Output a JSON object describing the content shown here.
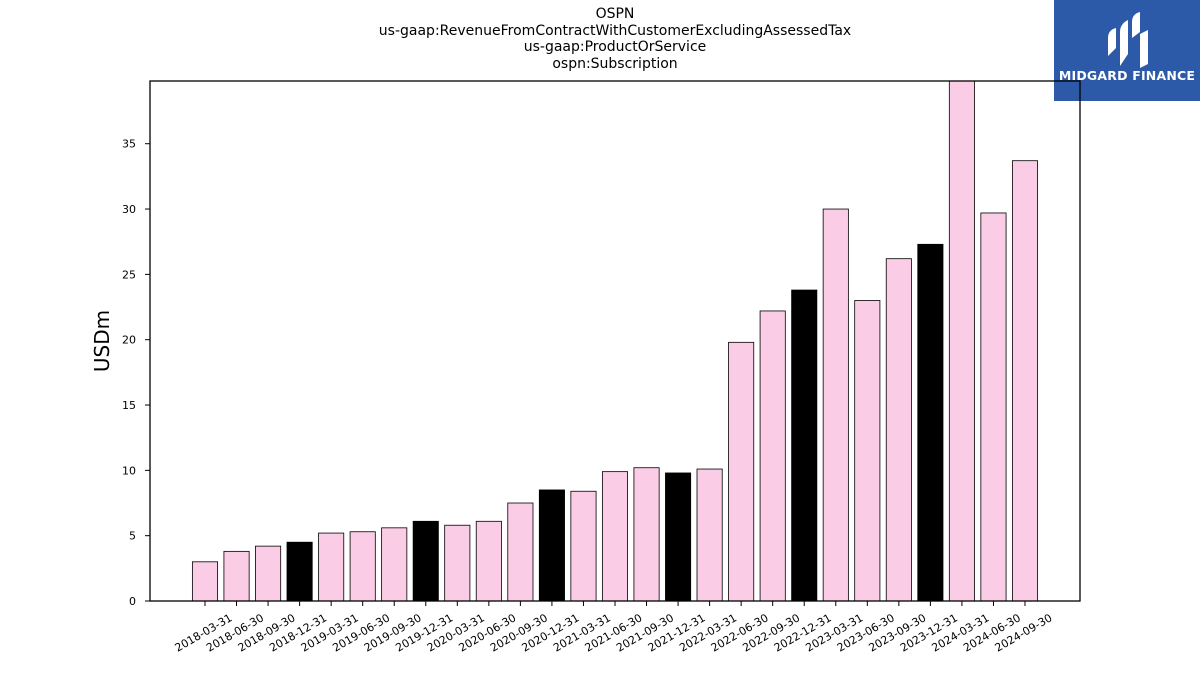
{
  "header": {
    "title_lines": [
      "OSPN",
      "us-gaap:RevenueFromContractWithCustomerExcludingAssessedTax",
      "us-gaap:ProductOrService",
      "ospn:Subscription"
    ]
  },
  "logo": {
    "text": "MIDGARD FINANCE",
    "icon": "midgard-logo-icon",
    "color": "#2d5aa8"
  },
  "colors": {
    "quarter_bar": "#fbcce5",
    "year_end_bar": "#000000",
    "bar_edge": "#000000"
  },
  "chart_data": {
    "type": "bar",
    "title": "OSPN\nus-gaap:RevenueFromContractWithCustomerExcludingAssessedTax\nus-gaap:ProductOrService\nospn:Subscription",
    "xlabel": "",
    "ylabel": "USDm",
    "ylim": [
      0,
      39.8
    ],
    "yticks": [
      0,
      5,
      10,
      15,
      20,
      25,
      30,
      35
    ],
    "grid": false,
    "legend": "none",
    "categories": [
      "2018-03-31",
      "2018-06-30",
      "2018-09-30",
      "2018-12-31",
      "2019-03-31",
      "2019-06-30",
      "2019-09-30",
      "2019-12-31",
      "2020-03-31",
      "2020-06-30",
      "2020-09-30",
      "2020-12-31",
      "2021-03-31",
      "2021-06-30",
      "2021-09-30",
      "2021-12-31",
      "2022-03-31",
      "2022-06-30",
      "2022-09-30",
      "2022-12-31",
      "2023-03-31",
      "2023-06-30",
      "2023-09-30",
      "2023-12-31",
      "2024-03-31",
      "2024-06-30",
      "2024-09-30"
    ],
    "values": [
      3.0,
      3.8,
      4.2,
      4.5,
      5.2,
      5.3,
      5.6,
      6.1,
      5.8,
      6.1,
      7.5,
      8.5,
      8.4,
      9.9,
      10.2,
      9.8,
      10.1,
      19.8,
      22.2,
      23.8,
      30.0,
      23.0,
      26.2,
      27.3,
      39.8,
      29.7,
      33.7
    ],
    "year_end": [
      false,
      false,
      false,
      true,
      false,
      false,
      false,
      true,
      false,
      false,
      false,
      true,
      false,
      false,
      false,
      true,
      false,
      false,
      false,
      true,
      false,
      false,
      false,
      true,
      false,
      false,
      false
    ]
  }
}
